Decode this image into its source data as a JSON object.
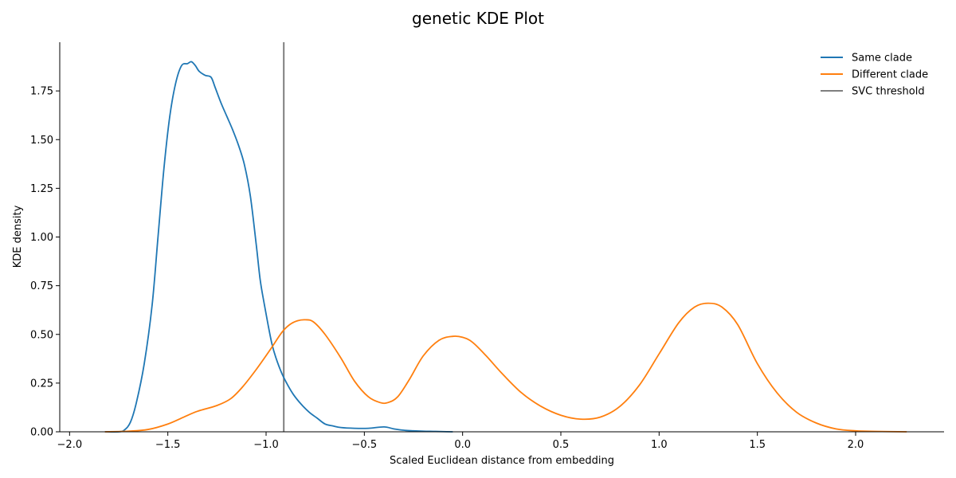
{
  "chart_data": {
    "type": "line",
    "title": "genetic KDE Plot",
    "xlabel": "Scaled Euclidean distance from embedding",
    "ylabel": "KDE density",
    "xlim": [
      -2.05,
      2.45
    ],
    "ylim": [
      0,
      2.0
    ],
    "xticks": [
      -2.0,
      -1.5,
      -1.0,
      -0.5,
      0.0,
      0.5,
      1.0,
      1.5,
      2.0
    ],
    "xtick_labels": [
      "−2.0",
      "−1.5",
      "−1.0",
      "−0.5",
      "0.0",
      "0.5",
      "1.0",
      "1.5",
      "2.0"
    ],
    "yticks": [
      0.0,
      0.25,
      0.5,
      0.75,
      1.0,
      1.25,
      1.5,
      1.75
    ],
    "ytick_labels": [
      "0.00",
      "0.25",
      "0.50",
      "0.75",
      "1.00",
      "1.25",
      "1.50",
      "1.75"
    ],
    "grid": false,
    "legend_position": "top-right",
    "series": [
      {
        "name": "Same clade",
        "color": "#1f77b4",
        "x": [
          -1.82,
          -1.75,
          -1.72,
          -1.69,
          -1.66,
          -1.62,
          -1.58,
          -1.55,
          -1.52,
          -1.49,
          -1.46,
          -1.43,
          -1.4,
          -1.38,
          -1.36,
          -1.34,
          -1.31,
          -1.28,
          -1.26,
          -1.23,
          -1.2,
          -1.17,
          -1.14,
          -1.11,
          -1.08,
          -1.05,
          -1.03,
          -1.01,
          -0.99,
          -0.97,
          -0.95,
          -0.92,
          -0.89,
          -0.86,
          -0.82,
          -0.78,
          -0.74,
          -0.7,
          -0.66,
          -0.62,
          -0.55,
          -0.48,
          -0.4,
          -0.35,
          -0.3,
          -0.25,
          -0.2,
          -0.15,
          -0.1,
          -0.05
        ],
        "y": [
          0.0,
          0.0,
          0.01,
          0.05,
          0.15,
          0.35,
          0.65,
          1.0,
          1.35,
          1.62,
          1.79,
          1.88,
          1.89,
          1.9,
          1.88,
          1.85,
          1.83,
          1.82,
          1.77,
          1.69,
          1.62,
          1.55,
          1.47,
          1.37,
          1.21,
          0.96,
          0.78,
          0.66,
          0.55,
          0.45,
          0.38,
          0.3,
          0.24,
          0.19,
          0.14,
          0.1,
          0.07,
          0.04,
          0.03,
          0.022,
          0.018,
          0.018,
          0.025,
          0.015,
          0.008,
          0.005,
          0.003,
          0.002,
          0.001,
          0.0
        ]
      },
      {
        "name": "Different clade",
        "color": "#ff7f0e",
        "x": [
          -1.82,
          -1.7,
          -1.6,
          -1.5,
          -1.42,
          -1.35,
          -1.25,
          -1.18,
          -1.12,
          -1.05,
          -0.98,
          -0.92,
          -0.88,
          -0.84,
          -0.8,
          -0.76,
          -0.7,
          -0.62,
          -0.55,
          -0.48,
          -0.42,
          -0.38,
          -0.33,
          -0.27,
          -0.2,
          -0.12,
          -0.05,
          0.0,
          0.05,
          0.12,
          0.2,
          0.3,
          0.4,
          0.5,
          0.6,
          0.7,
          0.8,
          0.9,
          1.0,
          1.1,
          1.18,
          1.25,
          1.32,
          1.4,
          1.5,
          1.6,
          1.7,
          1.8,
          1.9,
          2.0,
          2.1,
          2.26
        ],
        "y": [
          0.0,
          0.003,
          0.012,
          0.04,
          0.075,
          0.105,
          0.135,
          0.17,
          0.23,
          0.32,
          0.42,
          0.51,
          0.55,
          0.57,
          0.575,
          0.565,
          0.5,
          0.38,
          0.26,
          0.18,
          0.15,
          0.15,
          0.18,
          0.27,
          0.39,
          0.47,
          0.49,
          0.485,
          0.46,
          0.39,
          0.3,
          0.2,
          0.13,
          0.085,
          0.065,
          0.075,
          0.13,
          0.24,
          0.4,
          0.56,
          0.64,
          0.66,
          0.64,
          0.55,
          0.35,
          0.2,
          0.1,
          0.045,
          0.015,
          0.005,
          0.002,
          0.0
        ]
      }
    ],
    "vertical_lines": [
      {
        "name": "SVC threshold",
        "x": -0.91,
        "color": "#7f7f7f"
      }
    ]
  }
}
